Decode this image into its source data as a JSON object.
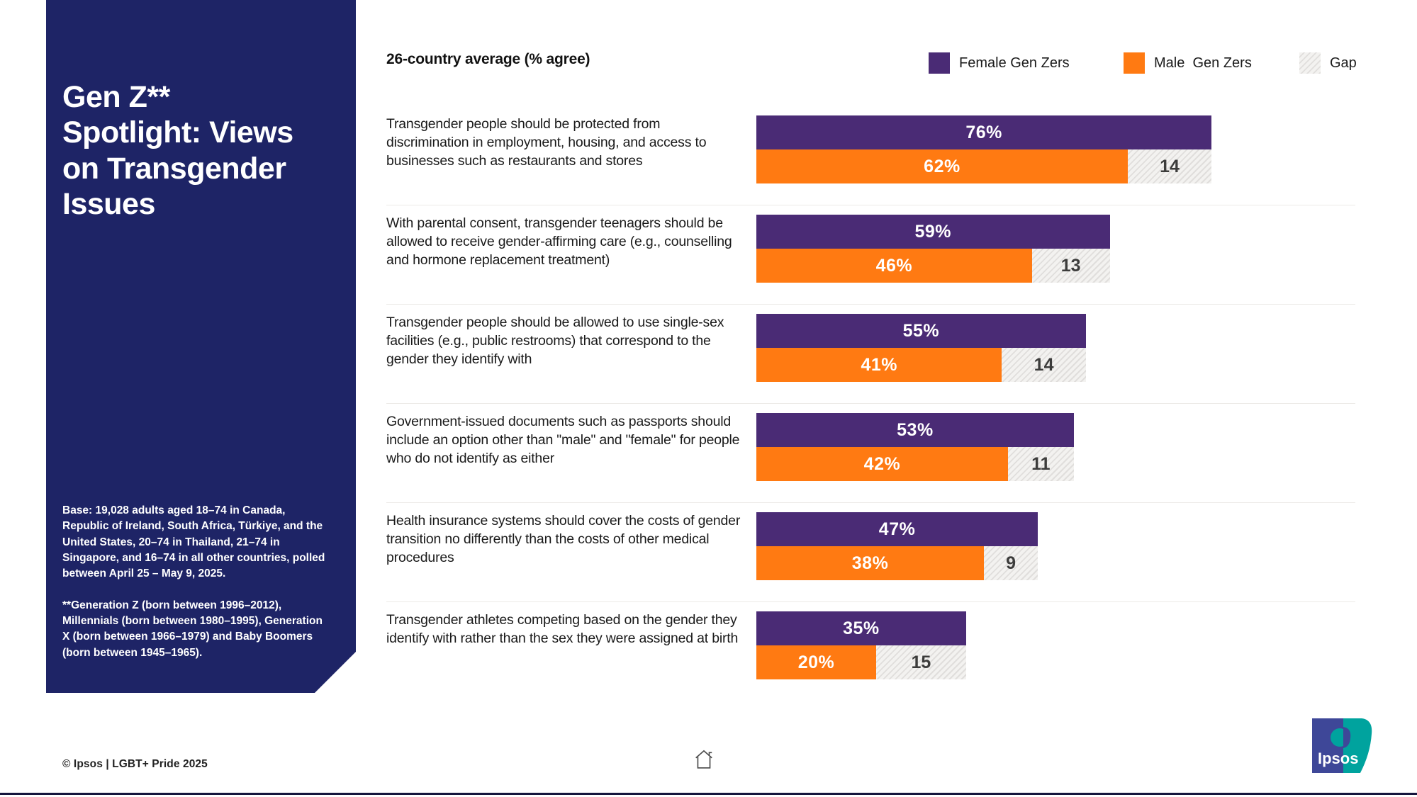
{
  "sidebar": {
    "title": "Gen Z** Spotlight: Views on Transgender Issues",
    "base_note": "Base: 19,028 adults aged 18–74 in Canada, Republic of Ireland, South Africa, Türkiye, and the United States, 20–74 in Thailand, 21–74 in Singapore, and 16–74 in all other countries, polled between April 25 – May 9, 2025.",
    "generation_note": "**Generation Z (born between 1996–2012), Millennials (born between 1980–1995), Generation X (born between 1966–1979) and Baby Boomers (born between 1945–1965)."
  },
  "header": {
    "subtitle": "26-country average (% agree)"
  },
  "legend": {
    "female_label": "Female Gen Zers",
    "male_label": "Male  Gen Zers",
    "gap_label": "Gap"
  },
  "colors": {
    "female": "#4A2B75",
    "male": "#FF7A12",
    "sidebar_navy": "#1E2466",
    "logo_blue": "#3E4798",
    "logo_teal": "#00A39E"
  },
  "chart_data": {
    "type": "bar",
    "orientation": "horizontal",
    "title": "Gen Z Spotlight: Views on Transgender Issues",
    "subtitle": "26-country average (% agree)",
    "xlim": [
      0,
      100
    ],
    "unit": "% agree",
    "legend_position": "top-right",
    "categories": [
      "Transgender people should be protected from discrimination in employment, housing, and access to businesses such as restaurants and stores",
      "With parental consent, transgender teenagers should be allowed to receive gender-affirming care (e.g., counselling and hormone replacement treatment)",
      "Transgender people should be allowed to use single-sex facilities (e.g., public restrooms) that correspond to the gender they identify with",
      "Government-issued documents such as passports should include an option other than \"male\" and \"female\" for people who do not identify as either",
      "Health insurance systems should cover the costs of gender transition no differently than the costs of other medical procedures",
      "Transgender athletes competing based on the gender they identify with rather than the sex they were assigned at birth"
    ],
    "series": [
      {
        "name": "Female Gen Zers",
        "values": [
          76,
          59,
          55,
          53,
          47,
          35
        ]
      },
      {
        "name": "Male Gen Zers",
        "values": [
          62,
          46,
          41,
          42,
          38,
          20
        ]
      },
      {
        "name": "Gap",
        "values": [
          14,
          13,
          14,
          11,
          9,
          15
        ]
      }
    ]
  },
  "footer": {
    "copyright": "© Ipsos | LGBT+ Pride 2025",
    "logo_text": "Ipsos"
  }
}
